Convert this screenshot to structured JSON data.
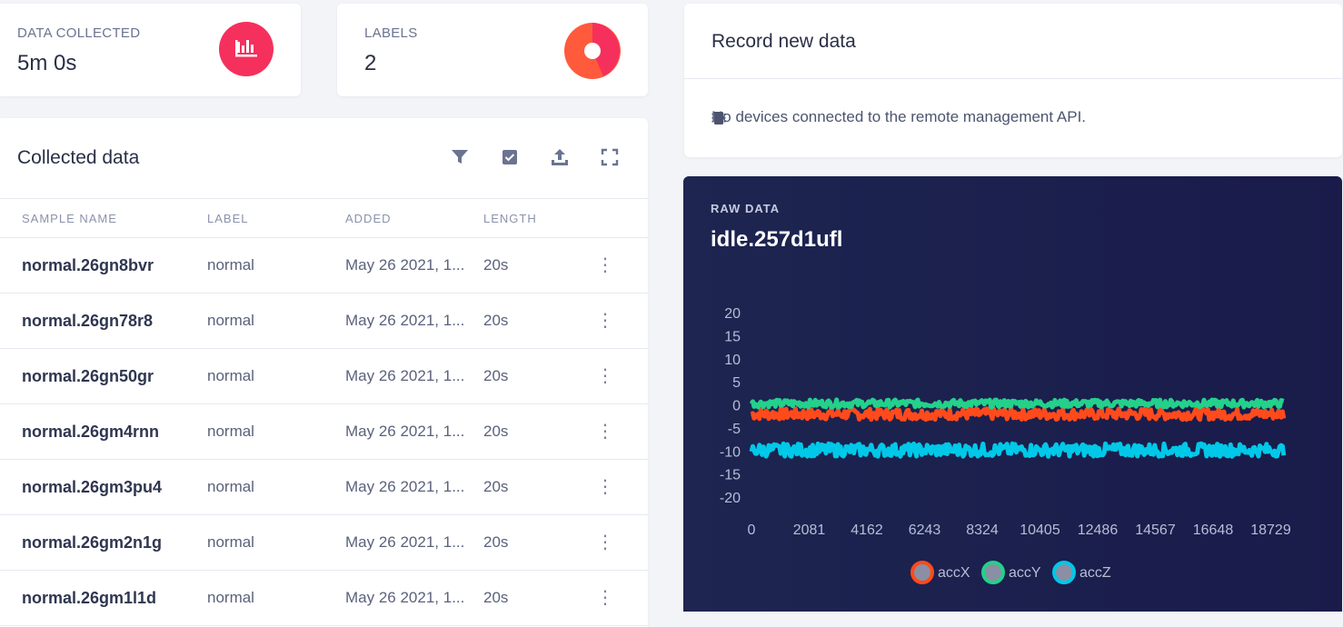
{
  "stats": [
    {
      "label": "DATA COLLECTED",
      "value": "5m 0s",
      "icon": "bar-chart-icon",
      "color": "#f5305d"
    },
    {
      "label": "LABELS",
      "value": "2",
      "icon": "pie-chart-icon",
      "colors": [
        "#f5305d",
        "#ff6b35",
        "#ffffff"
      ]
    }
  ],
  "collected": {
    "title": "Collected data",
    "toolbar": [
      "filter-icon",
      "checkbox-icon",
      "upload-icon",
      "fullscreen-icon"
    ],
    "columns": [
      "SAMPLE NAME",
      "LABEL",
      "ADDED",
      "LENGTH"
    ],
    "rows": [
      {
        "name": "normal.26gn8bvr",
        "label": "normal",
        "added": "May 26 2021, 1...",
        "length": "20s"
      },
      {
        "name": "normal.26gn78r8",
        "label": "normal",
        "added": "May 26 2021, 1...",
        "length": "20s"
      },
      {
        "name": "normal.26gn50gr",
        "label": "normal",
        "added": "May 26 2021, 1...",
        "length": "20s"
      },
      {
        "name": "normal.26gm4rnn",
        "label": "normal",
        "added": "May 26 2021, 1...",
        "length": "20s"
      },
      {
        "name": "normal.26gm3pu4",
        "label": "normal",
        "added": "May 26 2021, 1...",
        "length": "20s"
      },
      {
        "name": "normal.26gm2n1g",
        "label": "normal",
        "added": "May 26 2021, 1...",
        "length": "20s"
      },
      {
        "name": "normal.26gm1l1d",
        "label": "normal",
        "added": "May 26 2021, 1...",
        "length": "20s"
      }
    ]
  },
  "record": {
    "title": "Record new data",
    "message": "No devices connected to the remote management API.",
    "icon": "chip-icon"
  },
  "raw": {
    "label": "RAW DATA",
    "title": "idle.257d1ufl"
  },
  "chart_data": {
    "type": "line",
    "title": "idle.257d1ufl",
    "x_ticks": [
      0,
      2081,
      4162,
      6243,
      8324,
      10405,
      12486,
      14567,
      16648,
      18729
    ],
    "y_ticks": [
      20,
      15,
      10,
      5,
      0,
      -5,
      -10,
      -15,
      -20
    ],
    "xlim": [
      0,
      19500
    ],
    "ylim": [
      -20,
      20
    ],
    "grid": false,
    "legend": "bottom-center",
    "series": [
      {
        "name": "accX",
        "color": "#ff4a1c",
        "mean": -2,
        "noise": 1.2
      },
      {
        "name": "accY",
        "color": "#23d18b",
        "mean": 0.3,
        "noise": 0.8
      },
      {
        "name": "accZ",
        "color": "#00c8e8",
        "mean": -9.8,
        "noise": 1.4
      }
    ]
  }
}
